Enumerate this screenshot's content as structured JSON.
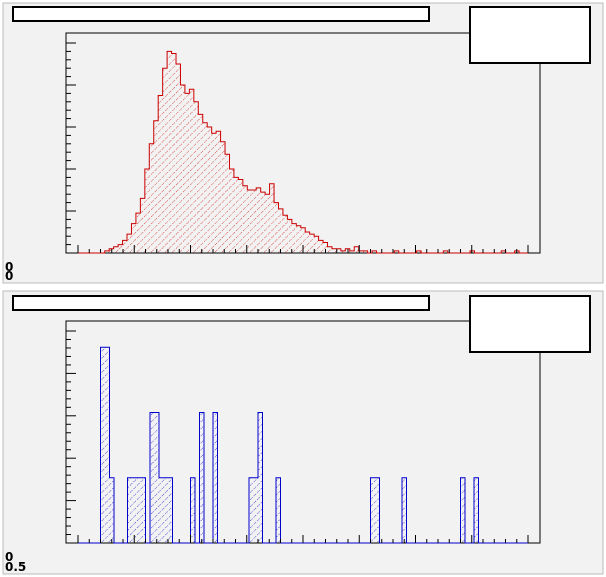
{
  "canvas": {
    "background": "#f2f2f2",
    "frame": "#000000"
  },
  "chart_data": [
    {
      "type": "bar",
      "style": "histogram-step-hatched",
      "color": "#cc0000",
      "hatch": "diagonal",
      "title": "",
      "xlabel": "",
      "ylabel": "",
      "y_tick_labels": [
        "0",
        "0"
      ],
      "title_box": "empty",
      "stats_box": "empty",
      "xlim": [
        0,
        100
      ],
      "ylim": [
        0,
        100
      ],
      "values": [
        0,
        0,
        0,
        0,
        0,
        0,
        1,
        2,
        3,
        4,
        6,
        9,
        14,
        19,
        26,
        40,
        52,
        63,
        75,
        88,
        96,
        95,
        90,
        80,
        76,
        78,
        72,
        66,
        62,
        60,
        57,
        58,
        53,
        47,
        40,
        36,
        35,
        32,
        30,
        30,
        31,
        29,
        28,
        33,
        24,
        21,
        18,
        16,
        14,
        13,
        12,
        10,
        9,
        8,
        6,
        5,
        3,
        2,
        2,
        1,
        2,
        1,
        3,
        1,
        1,
        0,
        1,
        0,
        0,
        0,
        0,
        1,
        0,
        0,
        0,
        0,
        1,
        0,
        0,
        0,
        0,
        0,
        1,
        0,
        0,
        0,
        0,
        0,
        1,
        0,
        0,
        0,
        0,
        0,
        0,
        1,
        0,
        0,
        1,
        0,
        0
      ]
    },
    {
      "type": "bar",
      "style": "histogram-step-hatched",
      "color": "#0000cc",
      "hatch": "diagonal",
      "title": "",
      "xlabel": "",
      "ylabel": "",
      "y_tick_labels": [
        "0",
        "0.5"
      ],
      "title_box": "empty",
      "stats_box": "empty",
      "xlim": [
        0,
        100
      ],
      "ylim": [
        0,
        6.5
      ],
      "values": [
        0,
        0,
        0,
        0,
        0,
        6,
        6,
        2,
        0,
        0,
        0,
        2,
        2,
        2,
        2,
        0,
        4,
        4,
        2,
        2,
        2,
        0,
        0,
        0,
        0,
        2,
        0,
        4,
        0,
        0,
        4,
        0,
        0,
        0,
        0,
        0,
        0,
        0,
        2,
        2,
        4,
        0,
        0,
        0,
        2,
        0,
        0,
        0,
        0,
        0,
        0,
        0,
        0,
        0,
        0,
        0,
        0,
        0,
        0,
        0,
        0,
        0,
        0,
        0,
        0,
        2,
        2,
        0,
        0,
        0,
        0,
        0,
        2,
        0,
        0,
        0,
        0,
        0,
        0,
        0,
        0,
        0,
        0,
        0,
        0,
        2,
        0,
        0,
        2,
        0,
        0,
        0,
        0,
        0,
        0,
        0,
        0,
        0,
        0,
        0
      ]
    }
  ]
}
